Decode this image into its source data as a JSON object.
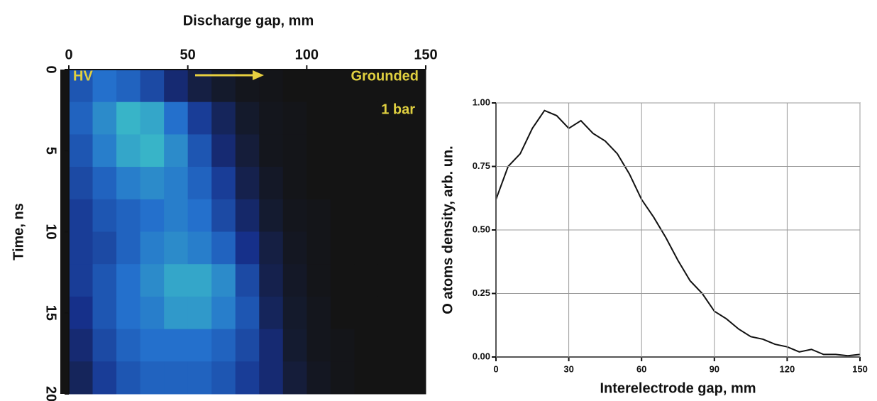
{
  "chart_data": [
    {
      "type": "heatmap",
      "x_label": "Discharge gap, mm",
      "y_label": "Time, ns",
      "annotations": [
        "HV",
        "Grounded",
        "1 bar"
      ],
      "xlim": [
        0,
        150
      ],
      "xticks": [
        0,
        50,
        100,
        150
      ],
      "xaxis_position": "top",
      "ylim": [
        20,
        0
      ],
      "yticks": [
        0,
        5,
        10,
        15,
        20
      ],
      "colormap": [
        "#141414",
        "#16308a",
        "#2470cc",
        "#38b4c8",
        "#a8d64a"
      ],
      "values": [
        [
          0.4,
          0.5,
          0.45,
          0.35,
          0.2,
          0.1,
          0.05,
          0.02,
          0.01,
          0,
          0,
          0,
          0,
          0,
          0
        ],
        [
          0.45,
          0.6,
          0.75,
          0.7,
          0.5,
          0.3,
          0.15,
          0.05,
          0.02,
          0.01,
          0,
          0,
          0,
          0,
          0
        ],
        [
          0.4,
          0.55,
          0.7,
          0.75,
          0.6,
          0.4,
          0.2,
          0.08,
          0.02,
          0.01,
          0,
          0,
          0,
          0,
          0
        ],
        [
          0.35,
          0.45,
          0.55,
          0.6,
          0.55,
          0.45,
          0.3,
          0.12,
          0.04,
          0.01,
          0,
          0,
          0,
          0,
          0
        ],
        [
          0.3,
          0.4,
          0.45,
          0.5,
          0.55,
          0.5,
          0.35,
          0.18,
          0.06,
          0.02,
          0.01,
          0,
          0,
          0,
          0
        ],
        [
          0.3,
          0.35,
          0.45,
          0.55,
          0.6,
          0.55,
          0.45,
          0.25,
          0.1,
          0.03,
          0.01,
          0,
          0,
          0,
          0
        ],
        [
          0.3,
          0.4,
          0.5,
          0.6,
          0.7,
          0.7,
          0.6,
          0.35,
          0.12,
          0.04,
          0.01,
          0,
          0,
          0,
          0
        ],
        [
          0.25,
          0.4,
          0.5,
          0.55,
          0.65,
          0.65,
          0.55,
          0.4,
          0.15,
          0.05,
          0.02,
          0,
          0,
          0,
          0
        ],
        [
          0.2,
          0.35,
          0.45,
          0.5,
          0.5,
          0.5,
          0.45,
          0.35,
          0.2,
          0.06,
          0.02,
          0.01,
          0,
          0,
          0
        ],
        [
          0.15,
          0.3,
          0.4,
          0.45,
          0.45,
          0.45,
          0.4,
          0.3,
          0.2,
          0.08,
          0.03,
          0.01,
          0,
          0,
          0
        ]
      ]
    },
    {
      "type": "line",
      "x_label": "Interelectrode gap, mm",
      "y_label": "O atoms density, arb. un.",
      "xlim": [
        0,
        150
      ],
      "xticks": [
        0,
        30,
        60,
        90,
        120,
        150
      ],
      "ylim": [
        0,
        1
      ],
      "yticks": [
        {
          "value": 0,
          "label": "0.00"
        },
        {
          "value": 0.25,
          "label": "0.25"
        },
        {
          "value": 0.5,
          "label": "0.50"
        },
        {
          "value": 0.75,
          "label": "0.75"
        },
        {
          "value": 1,
          "label": "1.00"
        }
      ],
      "grid": true,
      "color": "#111111",
      "x": [
        0,
        5,
        10,
        15,
        20,
        25,
        30,
        35,
        40,
        45,
        50,
        55,
        60,
        65,
        70,
        75,
        80,
        85,
        90,
        95,
        100,
        105,
        110,
        115,
        120,
        125,
        130,
        135,
        140,
        145,
        150
      ],
      "values": [
        0.62,
        0.75,
        0.8,
        0.9,
        0.97,
        0.95,
        0.9,
        0.93,
        0.88,
        0.85,
        0.8,
        0.72,
        0.62,
        0.55,
        0.47,
        0.38,
        0.3,
        0.25,
        0.18,
        0.15,
        0.11,
        0.08,
        0.07,
        0.05,
        0.04,
        0.02,
        0.03,
        0.01,
        0.01,
        0.005,
        0.01
      ]
    }
  ]
}
